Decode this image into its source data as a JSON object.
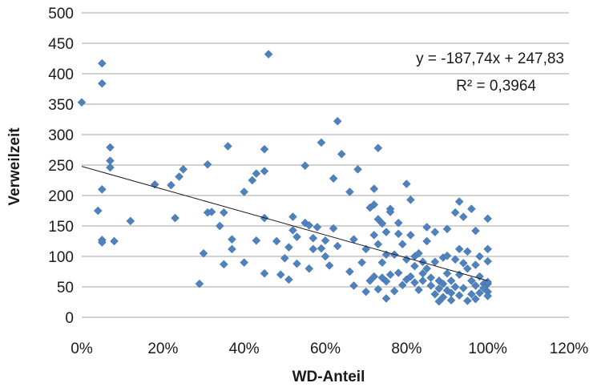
{
  "chart_data": {
    "type": "scatter",
    "xlabel": "WD-Anteil",
    "ylabel": "Verweilzeit",
    "xlim": [
      0,
      1.2
    ],
    "ylim": [
      0,
      500
    ],
    "x_ticks": [
      "0%",
      "20%",
      "40%",
      "60%",
      "80%",
      "100%",
      "120%"
    ],
    "y_ticks": [
      "0",
      "50",
      "100",
      "150",
      "200",
      "250",
      "300",
      "350",
      "400",
      "450",
      "500"
    ],
    "grid": "horizontal",
    "marker_color": "#4f81bd",
    "trendline": {
      "slope": -187.74,
      "intercept": 247.83,
      "equation": "y = -187,74x + 247,83",
      "r_squared": "R² = 0,3964"
    },
    "points": [
      [
        0.0,
        353
      ],
      [
        0.05,
        417
      ],
      [
        0.05,
        384
      ],
      [
        0.05,
        210
      ],
      [
        0.04,
        175
      ],
      [
        0.05,
        127
      ],
      [
        0.05,
        123
      ],
      [
        0.07,
        279
      ],
      [
        0.07,
        257
      ],
      [
        0.07,
        246
      ],
      [
        0.08,
        125
      ],
      [
        0.12,
        158
      ],
      [
        0.18,
        218
      ],
      [
        0.22,
        217
      ],
      [
        0.23,
        163
      ],
      [
        0.24,
        231
      ],
      [
        0.25,
        243
      ],
      [
        0.29,
        55
      ],
      [
        0.3,
        105
      ],
      [
        0.31,
        172
      ],
      [
        0.31,
        251
      ],
      [
        0.32,
        173
      ],
      [
        0.34,
        150
      ],
      [
        0.35,
        172
      ],
      [
        0.35,
        87
      ],
      [
        0.36,
        281
      ],
      [
        0.37,
        128
      ],
      [
        0.37,
        112
      ],
      [
        0.4,
        206
      ],
      [
        0.4,
        90
      ],
      [
        0.42,
        225
      ],
      [
        0.43,
        236
      ],
      [
        0.43,
        126
      ],
      [
        0.45,
        163
      ],
      [
        0.45,
        240
      ],
      [
        0.45,
        276
      ],
      [
        0.45,
        72
      ],
      [
        0.46,
        432
      ],
      [
        0.48,
        125
      ],
      [
        0.49,
        70
      ],
      [
        0.5,
        97
      ],
      [
        0.51,
        115
      ],
      [
        0.51,
        62
      ],
      [
        0.52,
        165
      ],
      [
        0.52,
        143
      ],
      [
        0.53,
        132
      ],
      [
        0.53,
        88
      ],
      [
        0.55,
        249
      ],
      [
        0.55,
        155
      ],
      [
        0.56,
        80
      ],
      [
        0.56,
        151
      ],
      [
        0.57,
        130
      ],
      [
        0.57,
        112
      ],
      [
        0.58,
        148
      ],
      [
        0.59,
        113
      ],
      [
        0.59,
        287
      ],
      [
        0.6,
        126
      ],
      [
        0.6,
        100
      ],
      [
        0.61,
        85
      ],
      [
        0.62,
        228
      ],
      [
        0.62,
        146
      ],
      [
        0.63,
        322
      ],
      [
        0.63,
        117
      ],
      [
        0.64,
        268
      ],
      [
        0.66,
        206
      ],
      [
        0.66,
        75
      ],
      [
        0.67,
        52
      ],
      [
        0.67,
        128
      ],
      [
        0.68,
        243
      ],
      [
        0.69,
        90
      ],
      [
        0.7,
        112
      ],
      [
        0.7,
        42
      ],
      [
        0.71,
        60
      ],
      [
        0.71,
        180
      ],
      [
        0.72,
        185
      ],
      [
        0.72,
        211
      ],
      [
        0.72,
        135
      ],
      [
        0.72,
        67
      ],
      [
        0.73,
        120
      ],
      [
        0.73,
        46
      ],
      [
        0.73,
        161
      ],
      [
        0.73,
        278
      ],
      [
        0.74,
        65
      ],
      [
        0.74,
        154
      ],
      [
        0.74,
        90
      ],
      [
        0.75,
        103
      ],
      [
        0.75,
        59
      ],
      [
        0.75,
        31
      ],
      [
        0.75,
        140
      ],
      [
        0.76,
        178
      ],
      [
        0.76,
        173
      ],
      [
        0.76,
        70
      ],
      [
        0.77,
        103
      ],
      [
        0.77,
        43
      ],
      [
        0.78,
        73
      ],
      [
        0.78,
        155
      ],
      [
        0.78,
        137
      ],
      [
        0.79,
        120
      ],
      [
        0.79,
        53
      ],
      [
        0.8,
        219
      ],
      [
        0.8,
        95
      ],
      [
        0.8,
        62
      ],
      [
        0.81,
        135
      ],
      [
        0.81,
        193
      ],
      [
        0.81,
        67
      ],
      [
        0.82,
        100
      ],
      [
        0.82,
        84
      ],
      [
        0.82,
        57
      ],
      [
        0.83,
        105
      ],
      [
        0.83,
        45
      ],
      [
        0.84,
        72
      ],
      [
        0.84,
        91
      ],
      [
        0.84,
        60
      ],
      [
        0.85,
        125
      ],
      [
        0.85,
        148
      ],
      [
        0.85,
        80
      ],
      [
        0.86,
        65
      ],
      [
        0.86,
        52
      ],
      [
        0.87,
        140
      ],
      [
        0.87,
        91
      ],
      [
        0.87,
        38
      ],
      [
        0.88,
        26
      ],
      [
        0.88,
        47
      ],
      [
        0.88,
        60
      ],
      [
        0.89,
        98
      ],
      [
        0.89,
        55
      ],
      [
        0.89,
        33
      ],
      [
        0.9,
        72
      ],
      [
        0.9,
        44
      ],
      [
        0.9,
        145
      ],
      [
        0.9,
        101
      ],
      [
        0.91,
        40
      ],
      [
        0.91,
        60
      ],
      [
        0.91,
        28
      ],
      [
        0.92,
        172
      ],
      [
        0.92,
        95
      ],
      [
        0.92,
        50
      ],
      [
        0.93,
        190
      ],
      [
        0.93,
        112
      ],
      [
        0.93,
        70
      ],
      [
        0.93,
        36
      ],
      [
        0.94,
        165
      ],
      [
        0.94,
        89
      ],
      [
        0.94,
        48
      ],
      [
        0.95,
        80
      ],
      [
        0.95,
        27
      ],
      [
        0.95,
        108
      ],
      [
        0.96,
        178
      ],
      [
        0.96,
        60
      ],
      [
        0.96,
        38
      ],
      [
        0.97,
        142
      ],
      [
        0.97,
        86
      ],
      [
        0.97,
        52
      ],
      [
        0.97,
        30
      ],
      [
        0.98,
        100
      ],
      [
        0.98,
        67
      ],
      [
        0.98,
        40
      ],
      [
        0.99,
        55
      ],
      [
        0.99,
        48
      ],
      [
        1.0,
        162
      ],
      [
        1.0,
        112
      ],
      [
        1.0,
        92
      ],
      [
        1.0,
        55
      ],
      [
        1.0,
        42
      ],
      [
        1.0,
        35
      ],
      [
        1.0,
        58
      ]
    ]
  }
}
